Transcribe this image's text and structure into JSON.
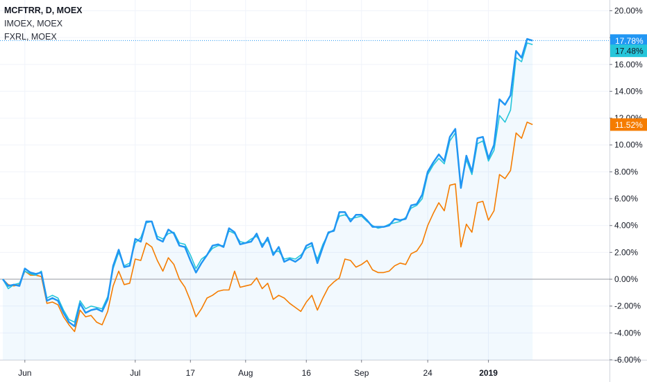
{
  "legend": {
    "line1": "MCFTRR, D, MOEX",
    "line2": "IMOEX, MOEX",
    "line3": "FXRL, MOEX"
  },
  "chart_data": {
    "type": "line",
    "y_unit": "%",
    "ylim": [
      -6,
      20.8
    ],
    "y_ticks": [
      -6,
      -4,
      -2,
      0,
      2,
      4,
      6,
      8,
      10,
      12,
      14,
      16,
      18,
      20
    ],
    "y_tick_labels": [
      "-6.00%",
      "-4.00%",
      "-2.00%",
      "0.00%",
      "2.00%",
      "4.00%",
      "6.00%",
      "8.00%",
      "10.00%",
      "12.00%",
      "14.00%",
      "16.00%",
      "18.00%",
      "20.00%"
    ],
    "x_count": 120,
    "x_ticks": [
      {
        "label": "Jun",
        "x": 4,
        "bold": false
      },
      {
        "label": "Jul",
        "x": 24,
        "bold": false
      },
      {
        "label": "17",
        "x": 34,
        "bold": false
      },
      {
        "label": "Aug",
        "x": 44,
        "bold": false
      },
      {
        "label": "16",
        "x": 55,
        "bold": false
      },
      {
        "label": "Sep",
        "x": 65,
        "bold": false
      },
      {
        "label": "24",
        "x": 77,
        "bold": false
      },
      {
        "label": "2019",
        "x": 88,
        "bold": true
      }
    ],
    "grid": true,
    "series": [
      {
        "name": "MCFTRR",
        "color": "#2196f3",
        "last_label": "17.78%",
        "values": [
          0,
          -0.5,
          -0.4,
          -0.5,
          0.8,
          0.5,
          0.4,
          0.5,
          -1.6,
          -1.4,
          -1.6,
          -2.5,
          -3.2,
          -3.5,
          -1.8,
          -2.5,
          -2.3,
          -2.2,
          -2.4,
          -1.5,
          1.0,
          2.2,
          0.9,
          1.0,
          3.0,
          2.8,
          4.3,
          4.3,
          3.0,
          2.8,
          3.7,
          3.4,
          2.5,
          2.4,
          1.4,
          0.5,
          1.2,
          1.8,
          2.5,
          2.6,
          2.4,
          3.8,
          3.5,
          2.6,
          2.7,
          2.8,
          3.4,
          2.4,
          3.1,
          1.8,
          2.4,
          1.3,
          1.5,
          1.3,
          1.6,
          2.5,
          2.7,
          1.2,
          2.4,
          3.5,
          3.6,
          5.0,
          5.0,
          4.3,
          4.8,
          4.8,
          4.4,
          3.9,
          3.9,
          3.9,
          4.0,
          4.5,
          4.4,
          4.5,
          5.5,
          5.6,
          6.3,
          8.0,
          8.7,
          9.3,
          8.8,
          10.6,
          11.2,
          6.8,
          9.2,
          8.0,
          10.5,
          10.6,
          9.0,
          10.0,
          13.4,
          13.0,
          13.7,
          17.0,
          16.5,
          17.9,
          17.78
        ]
      },
      {
        "name": "IMOEX",
        "color": "#26c6da",
        "last_label": "17.48%",
        "values": [
          0,
          -0.7,
          -0.4,
          -0.3,
          0.6,
          0.4,
          0.3,
          0.6,
          -1.4,
          -1.2,
          -1.4,
          -2.3,
          -3.0,
          -3.2,
          -1.6,
          -2.2,
          -2.0,
          -2.1,
          -2.2,
          -1.3,
          0.8,
          2.0,
          1.0,
          1.2,
          2.7,
          3.1,
          4.2,
          4.3,
          3.2,
          3.0,
          3.4,
          3.5,
          2.7,
          2.6,
          1.8,
          0.8,
          1.5,
          1.8,
          2.3,
          2.5,
          2.5,
          3.6,
          3.4,
          2.8,
          2.7,
          3.0,
          3.2,
          2.6,
          2.9,
          2.0,
          2.1,
          1.5,
          1.6,
          1.5,
          1.8,
          2.3,
          2.5,
          1.5,
          2.6,
          3.4,
          3.7,
          4.7,
          4.8,
          4.5,
          4.6,
          4.7,
          4.3,
          4.0,
          3.8,
          3.9,
          4.1,
          4.2,
          4.3,
          4.6,
          5.3,
          5.5,
          6.0,
          7.8,
          8.5,
          9.0,
          8.6,
          10.3,
          10.9,
          7.0,
          8.9,
          7.8,
          10.1,
          10.3,
          8.8,
          9.6,
          12.2,
          11.7,
          12.6,
          16.5,
          16.2,
          17.6,
          17.48
        ]
      },
      {
        "name": "FXRL",
        "color": "#f57c00",
        "last_label": "11.52%",
        "values": [
          0,
          -0.4,
          -0.5,
          -0.4,
          0.6,
          0.3,
          0.3,
          0.2,
          -1.8,
          -1.7,
          -1.9,
          -2.8,
          -3.4,
          -3.9,
          -2.3,
          -2.8,
          -2.7,
          -3.2,
          -3.4,
          -2.4,
          -0.5,
          0.6,
          -0.4,
          -0.3,
          1.5,
          1.4,
          2.7,
          2.4,
          1.4,
          0.6,
          1.6,
          1.1,
          0.0,
          -0.6,
          -1.6,
          -2.8,
          -2.2,
          -1.4,
          -1.2,
          -0.9,
          -0.8,
          -0.8,
          0.6,
          -0.6,
          -0.5,
          -0.4,
          0.1,
          -0.7,
          -0.3,
          -1.5,
          -1.2,
          -1.4,
          -1.8,
          -2.1,
          -2.4,
          -1.7,
          -1.2,
          -2.3,
          -1.4,
          -0.6,
          -0.2,
          0.1,
          1.5,
          1.4,
          0.9,
          1.1,
          1.4,
          0.7,
          0.5,
          0.5,
          0.6,
          1.0,
          1.2,
          1.1,
          1.9,
          2.1,
          2.7,
          4.0,
          4.9,
          5.7,
          5.1,
          7.0,
          7.1,
          2.4,
          4.1,
          3.5,
          5.7,
          5.8,
          4.4,
          5.1,
          7.8,
          7.5,
          8.1,
          10.9,
          10.5,
          11.7,
          11.52
        ]
      }
    ]
  }
}
